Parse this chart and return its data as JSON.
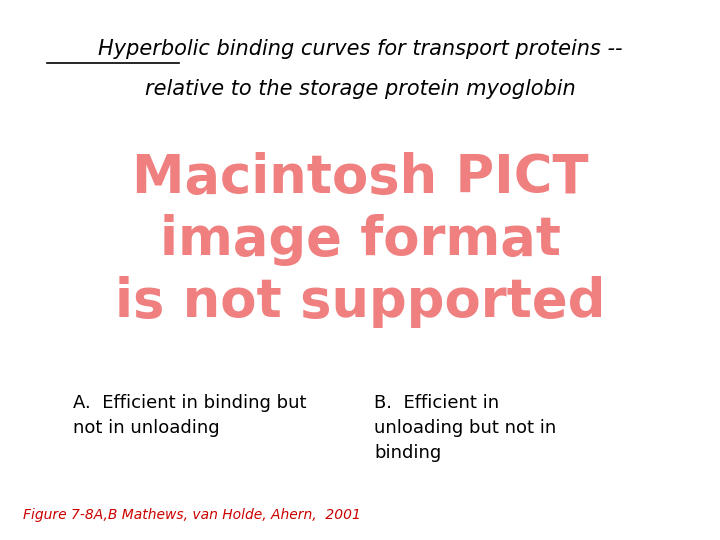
{
  "background_color": "#ffffff",
  "title_line1_underlined": "Hyperbolic",
  "title_line1_rest": " binding curves for transport proteins --",
  "title_line2": "relative to the storage protein myoglobin",
  "pict_line1": "Macintosh PICT",
  "pict_line2": "image format",
  "pict_line3": "is not supported",
  "pict_color": "#f08080",
  "label_A": "A.  Efficient in binding but\nnot in unloading",
  "label_B": "B.  Efficient in\nunloading but not in\nbinding",
  "caption": "Figure 7-8A,B Mathews, van Holde, Ahern,  2001",
  "caption_color": "#cc0000",
  "text_color": "#000000",
  "title_fontsize": 15,
  "pict_fontsize": 38,
  "label_fontsize": 13,
  "caption_fontsize": 10
}
